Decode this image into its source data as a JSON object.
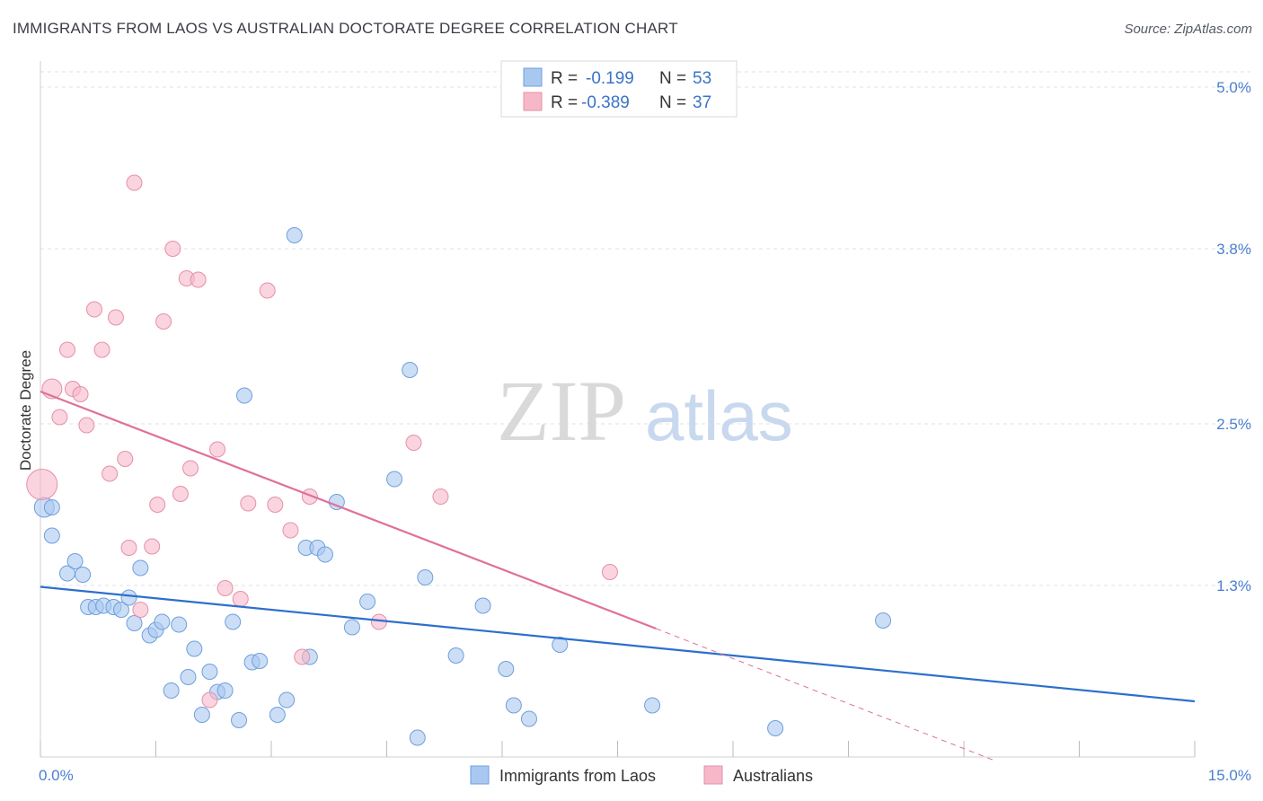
{
  "title": "IMMIGRANTS FROM LAOS VS AUSTRALIAN DOCTORATE DEGREE CORRELATION CHART",
  "source": "Source: ZipAtlas.com",
  "watermark": {
    "zip": "ZIP",
    "atlas": "atlas"
  },
  "legend": {
    "rows": [
      {
        "r_label": "R =",
        "r_value": "-0.199",
        "n_label": "N =",
        "n_value": "53",
        "color": "#a9c8f0"
      },
      {
        "r_label": "R =",
        "r_value": "-0.389",
        "n_label": "N =",
        "n_value": "37",
        "color": "#f6b8c9"
      }
    ]
  },
  "chart_data": {
    "type": "scatter",
    "title": "IMMIGRANTS FROM LAOS VS AUSTRALIAN DOCTORATE DEGREE CORRELATION CHART",
    "xlabel": "",
    "ylabel": "Doctorate Degree",
    "xlim": [
      0,
      15
    ],
    "ylim": [
      0,
      5.2
    ],
    "x_tick_labels": [
      "0.0%",
      "15.0%"
    ],
    "y_ticks": [
      1.3,
      2.5,
      3.8,
      5.0
    ],
    "y_tick_labels": [
      "1.3%",
      "2.5%",
      "3.8%",
      "5.0%"
    ],
    "grid": true,
    "legend_placement": "top-center",
    "series": [
      {
        "name": "Immigrants from Laos",
        "color": "#a9c8f0",
        "edge": "#6f9fdc",
        "trend_color": "#2d6fcc",
        "trend": {
          "x": [
            0,
            15
          ],
          "y": [
            1.29,
            0.44
          ]
        },
        "points": [
          {
            "x": 0.05,
            "y": 1.88,
            "s": "l"
          },
          {
            "x": 0.15,
            "y": 1.88,
            "s": "m"
          },
          {
            "x": 0.15,
            "y": 1.67,
            "s": "m"
          },
          {
            "x": 0.35,
            "y": 1.39,
            "s": "m"
          },
          {
            "x": 0.45,
            "y": 1.48,
            "s": "m"
          },
          {
            "x": 0.55,
            "y": 1.38,
            "s": "m"
          },
          {
            "x": 0.62,
            "y": 1.14,
            "s": "m"
          },
          {
            "x": 0.72,
            "y": 1.14,
            "s": "m"
          },
          {
            "x": 0.82,
            "y": 1.15,
            "s": "m"
          },
          {
            "x": 0.95,
            "y": 1.14,
            "s": "m"
          },
          {
            "x": 1.05,
            "y": 1.12,
            "s": "m"
          },
          {
            "x": 1.15,
            "y": 1.21,
            "s": "m"
          },
          {
            "x": 1.22,
            "y": 1.02,
            "s": "m"
          },
          {
            "x": 1.3,
            "y": 1.43,
            "s": "m"
          },
          {
            "x": 1.42,
            "y": 0.93,
            "s": "m"
          },
          {
            "x": 1.5,
            "y": 0.97,
            "s": "m"
          },
          {
            "x": 1.58,
            "y": 1.03,
            "s": "m"
          },
          {
            "x": 1.7,
            "y": 0.52,
            "s": "m"
          },
          {
            "x": 1.8,
            "y": 1.01,
            "s": "m"
          },
          {
            "x": 1.92,
            "y": 0.62,
            "s": "m"
          },
          {
            "x": 2.0,
            "y": 0.83,
            "s": "m"
          },
          {
            "x": 2.1,
            "y": 0.34,
            "s": "m"
          },
          {
            "x": 2.2,
            "y": 0.66,
            "s": "m"
          },
          {
            "x": 2.3,
            "y": 0.51,
            "s": "m"
          },
          {
            "x": 2.4,
            "y": 0.52,
            "s": "m"
          },
          {
            "x": 2.5,
            "y": 1.03,
            "s": "m"
          },
          {
            "x": 2.58,
            "y": 0.3,
            "s": "m"
          },
          {
            "x": 2.65,
            "y": 2.71,
            "s": "m"
          },
          {
            "x": 2.75,
            "y": 0.73,
            "s": "m"
          },
          {
            "x": 2.85,
            "y": 0.74,
            "s": "m"
          },
          {
            "x": 3.08,
            "y": 0.34,
            "s": "m"
          },
          {
            "x": 3.2,
            "y": 0.45,
            "s": "m"
          },
          {
            "x": 3.3,
            "y": 3.9,
            "s": "m"
          },
          {
            "x": 3.45,
            "y": 1.58,
            "s": "m"
          },
          {
            "x": 3.5,
            "y": 0.77,
            "s": "m"
          },
          {
            "x": 3.6,
            "y": 1.58,
            "s": "m"
          },
          {
            "x": 3.7,
            "y": 1.53,
            "s": "m"
          },
          {
            "x": 3.85,
            "y": 1.92,
            "s": "m"
          },
          {
            "x": 4.05,
            "y": 0.99,
            "s": "m"
          },
          {
            "x": 4.25,
            "y": 1.18,
            "s": "m"
          },
          {
            "x": 4.6,
            "y": 2.09,
            "s": "m"
          },
          {
            "x": 4.8,
            "y": 2.9,
            "s": "m"
          },
          {
            "x": 4.9,
            "y": 0.17,
            "s": "m"
          },
          {
            "x": 5.0,
            "y": 1.36,
            "s": "m"
          },
          {
            "x": 5.4,
            "y": 0.78,
            "s": "m"
          },
          {
            "x": 5.75,
            "y": 1.15,
            "s": "m"
          },
          {
            "x": 6.05,
            "y": 0.68,
            "s": "m"
          },
          {
            "x": 6.15,
            "y": 0.41,
            "s": "m"
          },
          {
            "x": 6.35,
            "y": 0.31,
            "s": "m"
          },
          {
            "x": 6.75,
            "y": 0.86,
            "s": "m"
          },
          {
            "x": 7.95,
            "y": 0.41,
            "s": "m"
          },
          {
            "x": 9.55,
            "y": 0.24,
            "s": "m"
          },
          {
            "x": 10.95,
            "y": 1.04,
            "s": "m"
          }
        ]
      },
      {
        "name": "Australians",
        "color": "#f6b8c9",
        "edge": "#e690a8",
        "trend_color": "#e0709a",
        "trend": {
          "x": [
            0,
            8.0
          ],
          "y": [
            2.74,
            0.98
          ]
        },
        "trend_dashed": {
          "x": [
            8.0,
            12.4
          ],
          "y": [
            0.98,
            0.0
          ]
        },
        "points": [
          {
            "x": 0.02,
            "y": 2.05,
            "s": "xl"
          },
          {
            "x": 0.15,
            "y": 2.76,
            "s": "l"
          },
          {
            "x": 0.25,
            "y": 2.55,
            "s": "m"
          },
          {
            "x": 0.35,
            "y": 3.05,
            "s": "m"
          },
          {
            "x": 0.42,
            "y": 2.76,
            "s": "m"
          },
          {
            "x": 0.52,
            "y": 2.72,
            "s": "m"
          },
          {
            "x": 0.6,
            "y": 2.49,
            "s": "m"
          },
          {
            "x": 0.7,
            "y": 3.35,
            "s": "m"
          },
          {
            "x": 0.8,
            "y": 3.05,
            "s": "m"
          },
          {
            "x": 0.9,
            "y": 2.13,
            "s": "m"
          },
          {
            "x": 0.98,
            "y": 3.29,
            "s": "m"
          },
          {
            "x": 1.1,
            "y": 2.24,
            "s": "m"
          },
          {
            "x": 1.15,
            "y": 1.58,
            "s": "m"
          },
          {
            "x": 1.22,
            "y": 4.29,
            "s": "m"
          },
          {
            "x": 1.3,
            "y": 1.12,
            "s": "m"
          },
          {
            "x": 1.45,
            "y": 1.59,
            "s": "m"
          },
          {
            "x": 1.52,
            "y": 1.9,
            "s": "m"
          },
          {
            "x": 1.6,
            "y": 3.26,
            "s": "m"
          },
          {
            "x": 1.72,
            "y": 3.8,
            "s": "m"
          },
          {
            "x": 1.82,
            "y": 1.98,
            "s": "m"
          },
          {
            "x": 1.9,
            "y": 3.58,
            "s": "m"
          },
          {
            "x": 1.95,
            "y": 2.17,
            "s": "m"
          },
          {
            "x": 2.05,
            "y": 3.57,
            "s": "m"
          },
          {
            "x": 2.2,
            "y": 0.45,
            "s": "m"
          },
          {
            "x": 2.3,
            "y": 2.31,
            "s": "m"
          },
          {
            "x": 2.4,
            "y": 1.28,
            "s": "m"
          },
          {
            "x": 2.6,
            "y": 1.2,
            "s": "m"
          },
          {
            "x": 2.7,
            "y": 1.91,
            "s": "m"
          },
          {
            "x": 2.95,
            "y": 3.49,
            "s": "m"
          },
          {
            "x": 3.05,
            "y": 1.9,
            "s": "m"
          },
          {
            "x": 3.25,
            "y": 1.71,
            "s": "m"
          },
          {
            "x": 3.4,
            "y": 0.77,
            "s": "m"
          },
          {
            "x": 3.5,
            "y": 1.96,
            "s": "m"
          },
          {
            "x": 4.4,
            "y": 1.03,
            "s": "m"
          },
          {
            "x": 4.85,
            "y": 2.36,
            "s": "m"
          },
          {
            "x": 5.2,
            "y": 1.96,
            "s": "m"
          },
          {
            "x": 7.4,
            "y": 1.4,
            "s": "m"
          }
        ]
      }
    ]
  }
}
